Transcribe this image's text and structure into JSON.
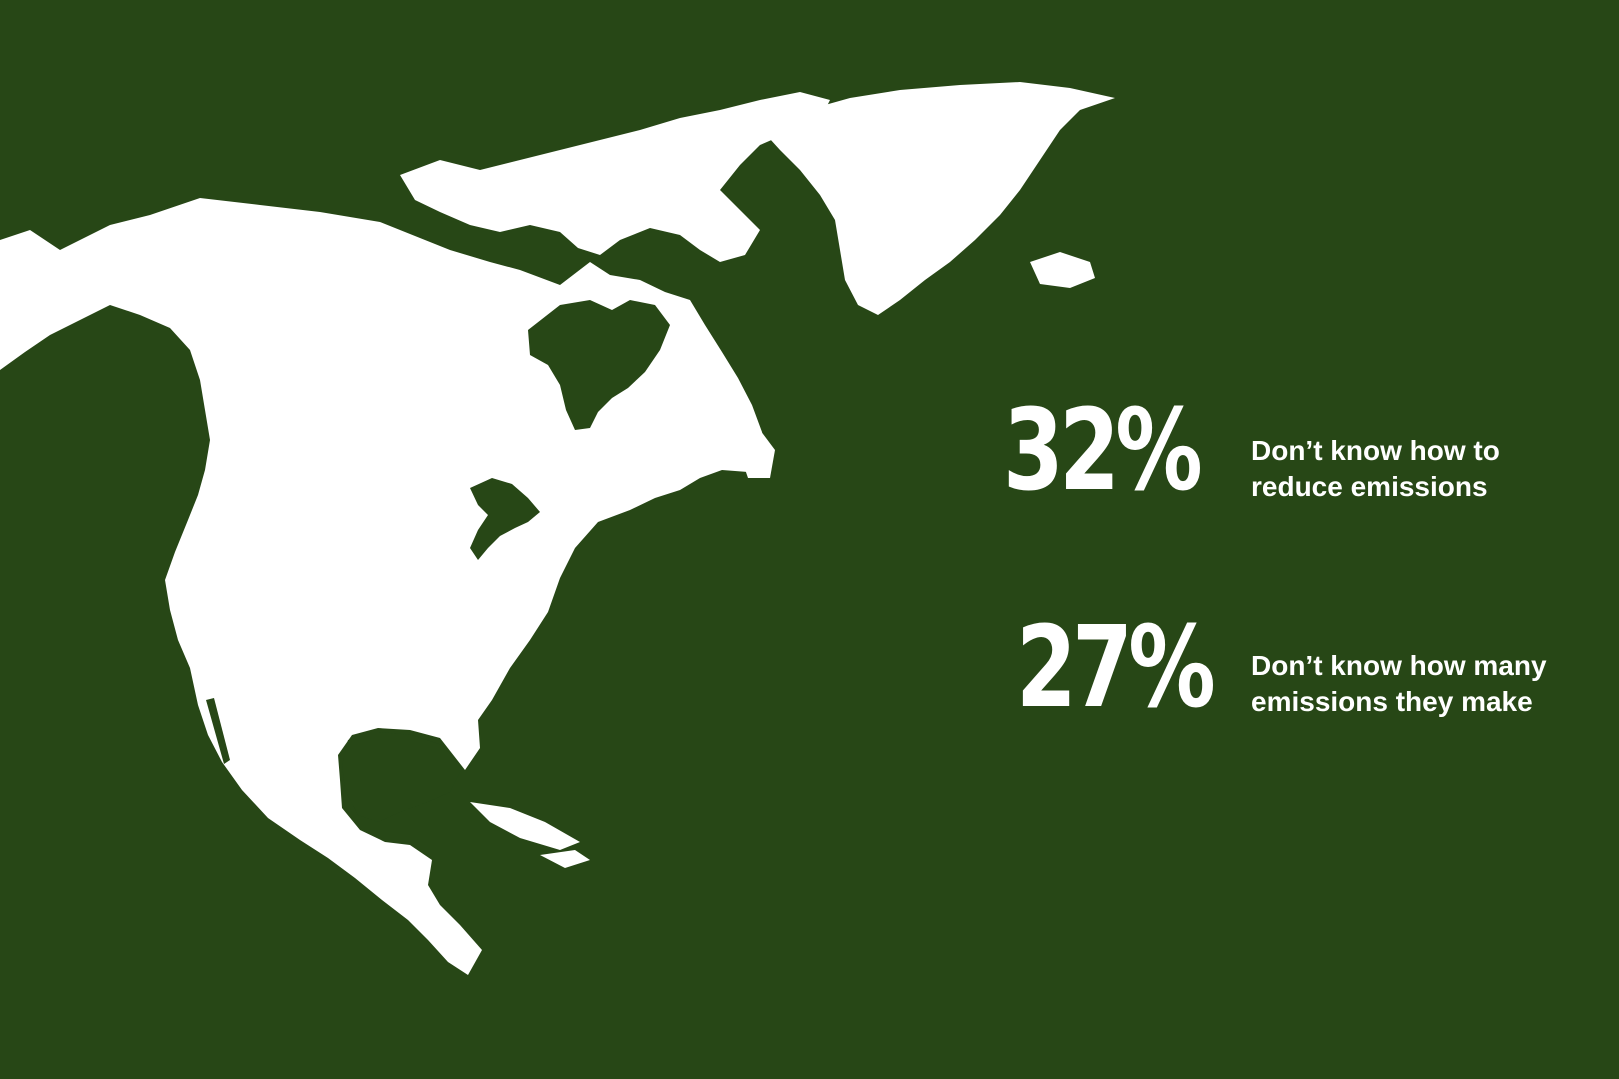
{
  "slide": {
    "background_color": "#274716",
    "map_color": "#ffffff",
    "map_region": "north-america",
    "stats": [
      {
        "value": "32%",
        "lines": [
          "Don’t know how to",
          "reduce emissions"
        ]
      },
      {
        "value": "27%",
        "lines": [
          "Don’t know how many",
          "emissions they make"
        ]
      }
    ]
  }
}
